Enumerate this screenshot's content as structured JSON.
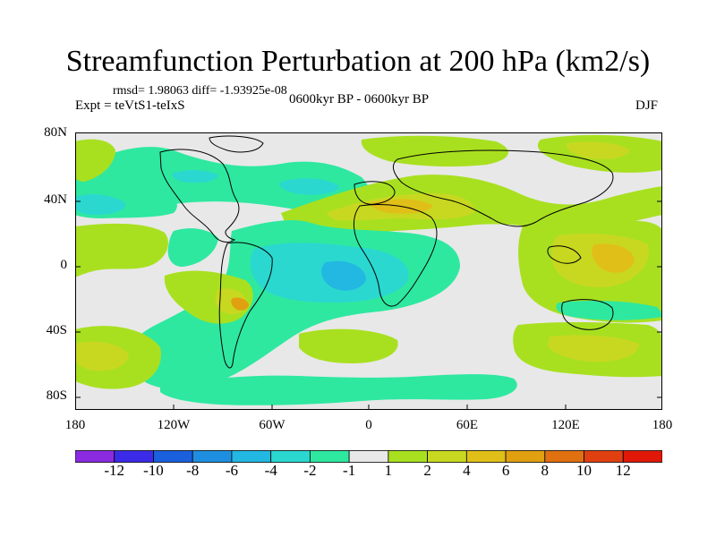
{
  "title": "Streamfunction Perturbation at 200 hPa (km2/s)",
  "stats": "rmsd= 1.98063  diff= -1.93925e-08",
  "experiment": "Expt = teVtS1-teIxS",
  "period": "0600kyr BP - 0600kyr BP",
  "season": "DJF",
  "lat_labels": [
    "80N",
    "40N",
    "0",
    "40S",
    "80S"
  ],
  "lon_labels": [
    "180",
    "120W",
    "60W",
    "0",
    "60E",
    "120E",
    "180"
  ],
  "colorbar": {
    "labels": [
      "-12",
      "-10",
      "-8",
      "-6",
      "-4",
      "-2",
      "-1",
      "1",
      "2",
      "4",
      "6",
      "8",
      "10",
      "12"
    ],
    "colors": [
      "#8a2be2",
      "#3b2be8",
      "#1a5fdc",
      "#1e8fe0",
      "#22b8e2",
      "#2ad8d0",
      "#2ee8a0",
      "#e8e8e8",
      "#a8e020",
      "#c8d820",
      "#e0c018",
      "#e0a010",
      "#e07010",
      "#e04010",
      "#e01808"
    ]
  },
  "map_colors": {
    "background": "#e8e8e8",
    "neg1": "#2ee8a0",
    "neg2": "#2ad8d0",
    "neg3": "#22b8e2",
    "pos1": "#a8e020",
    "pos2": "#c8d820",
    "pos3": "#e0c018",
    "pos4": "#e0a010"
  }
}
